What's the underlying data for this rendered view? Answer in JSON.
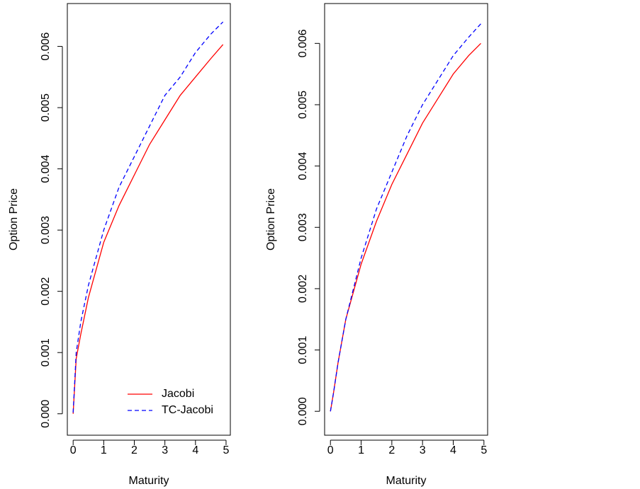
{
  "chart_data": [
    {
      "type": "line",
      "x_label": "Maturity",
      "y_label": "Option Price",
      "x": [
        0,
        0.1,
        0.25,
        0.5,
        1,
        1.5,
        2,
        2.5,
        3,
        3.5,
        4,
        4.5,
        4.9
      ],
      "series": [
        {
          "name": "Jacobi",
          "color": "#ff0000",
          "line_style": "solid",
          "values": [
            0,
            0.0009,
            0.0013,
            0.0019,
            0.0028,
            0.0034,
            0.0039,
            0.0044,
            0.0048,
            0.0052,
            0.0055,
            0.0058,
            0.00603
          ]
        },
        {
          "name": "TC-Jacobi",
          "color": "#0000ff",
          "line_style": "dashed",
          "values": [
            2e-05,
            0.001,
            0.0015,
            0.0021,
            0.003,
            0.0037,
            0.0042,
            0.0047,
            0.0052,
            0.0055,
            0.0059,
            0.0062,
            0.0064
          ]
        }
      ],
      "legend": "bottom-right",
      "xlim": [
        -0.19,
        5.14
      ],
      "xticks": [
        0,
        1,
        2,
        3,
        4,
        5
      ],
      "ylim": [
        -0.00035,
        0.0067
      ],
      "yticks": [
        {
          "value": 0,
          "label": "0.000"
        },
        {
          "value": 0.001,
          "label": "0.001"
        },
        {
          "value": 0.002,
          "label": "0.002"
        },
        {
          "value": 0.003,
          "label": "0.003"
        },
        {
          "value": 0.004,
          "label": "0.004"
        },
        {
          "value": 0.005,
          "label": "0.005"
        },
        {
          "value": 0.006,
          "label": "0.006"
        }
      ]
    },
    {
      "type": "line",
      "x_label": "Maturity",
      "y_label": "Option Price",
      "x": [
        0,
        0.1,
        0.25,
        0.5,
        1,
        1.5,
        2,
        2.5,
        3,
        3.5,
        4,
        4.5,
        4.9
      ],
      "series": [
        {
          "color": "#ff0000",
          "line_style": "solid",
          "values": [
            0,
            0.0003,
            0.0008,
            0.0015,
            0.0024,
            0.0031,
            0.0037,
            0.0042,
            0.0047,
            0.0051,
            0.0055,
            0.0058,
            0.006
          ]
        },
        {
          "color": "#0000ff",
          "line_style": "dashed",
          "values": [
            0,
            0.0003,
            0.0008,
            0.0015,
            0.0025,
            0.0033,
            0.0039,
            0.0045,
            0.005,
            0.0054,
            0.0058,
            0.0061,
            0.00632
          ]
        }
      ],
      "xlim": [
        -0.19,
        5.12
      ],
      "xticks": [
        0,
        1,
        2,
        3,
        4,
        5
      ],
      "ylim": [
        -0.00039,
        0.00665
      ],
      "yticks": [
        {
          "value": 0,
          "label": "0.000"
        },
        {
          "value": 0.001,
          "label": "0.001"
        },
        {
          "value": 0.002,
          "label": "0.002"
        },
        {
          "value": 0.003,
          "label": "0.003"
        },
        {
          "value": 0.004,
          "label": "0.004"
        },
        {
          "value": 0.005,
          "label": "0.005"
        },
        {
          "value": 0.006,
          "label": "0.006"
        }
      ]
    }
  ]
}
